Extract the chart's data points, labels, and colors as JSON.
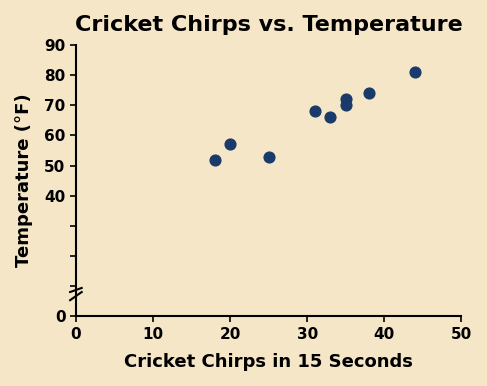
{
  "title": "Cricket Chirps vs. Temperature",
  "xlabel": "Cricket Chirps in 15 Seconds",
  "ylabel": "Temperature (°F)",
  "x_data": [
    18,
    20,
    25,
    31,
    33,
    35,
    35,
    38,
    44
  ],
  "y_data": [
    52,
    57,
    53,
    68,
    66,
    72,
    70,
    74,
    81
  ],
  "xlim": [
    0,
    50
  ],
  "ylim": [
    0,
    90
  ],
  "xticks": [
    0,
    10,
    20,
    30,
    40,
    50
  ],
  "yticks": [
    0,
    40,
    50,
    60,
    70,
    80,
    90
  ],
  "marker_color": "#1a3a6b",
  "bg_color": "#f5e6c8",
  "marker_size": 60,
  "marker_style": "o",
  "title_fontsize": 16,
  "label_fontsize": 13,
  "tick_fontsize": 11,
  "axis_color": "#000000"
}
